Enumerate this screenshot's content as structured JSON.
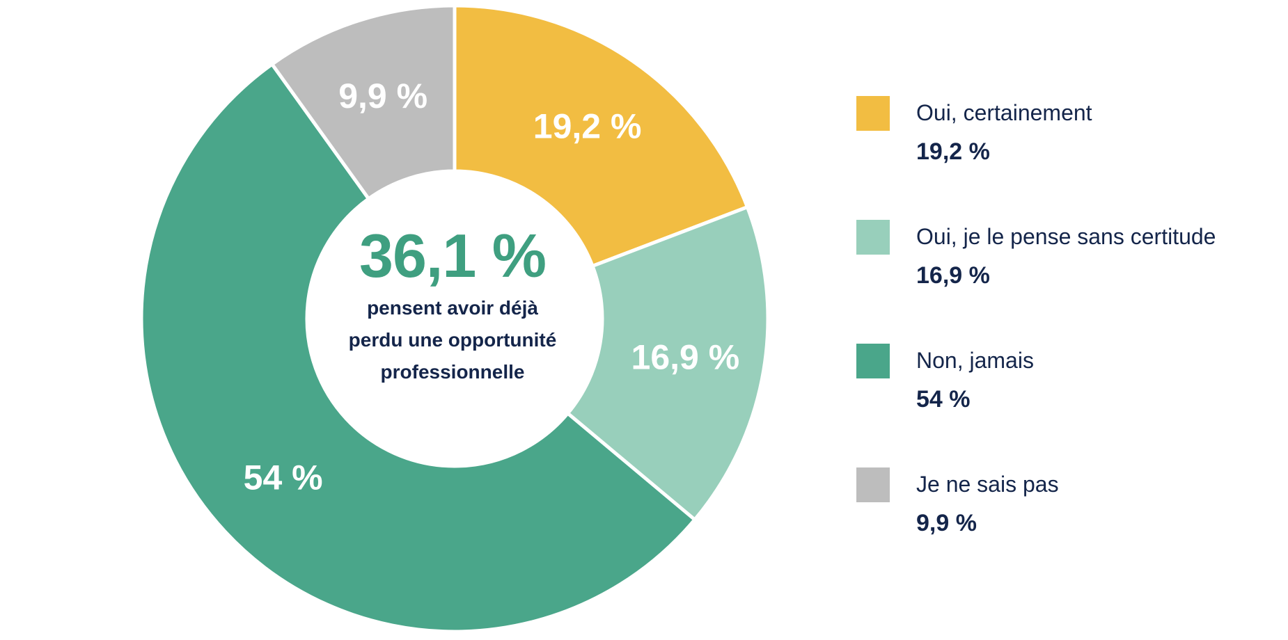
{
  "chart_data": {
    "type": "pie",
    "donut": true,
    "title": "",
    "legend_position": "right",
    "slices": [
      {
        "label": "Oui, certainement",
        "value": 19.2,
        "value_label": "19,2 %",
        "color": "#f2bd42"
      },
      {
        "label": "Oui, je le pense sans certitude",
        "value": 16.9,
        "value_label": "16,9 %",
        "color": "#98cfbb"
      },
      {
        "label": "Non, jamais",
        "value": 54,
        "value_label": "54 %",
        "color": "#4aa68a"
      },
      {
        "label": "Je ne sais pas",
        "value": 9.9,
        "value_label": "9,9 %",
        "color": "#bdbdbd"
      }
    ],
    "center": {
      "value": "36,1 %",
      "caption": "pensent avoir déjà perdu une opportunité professionnelle",
      "color": "#3f9f80"
    },
    "text_color": "#14254a"
  }
}
